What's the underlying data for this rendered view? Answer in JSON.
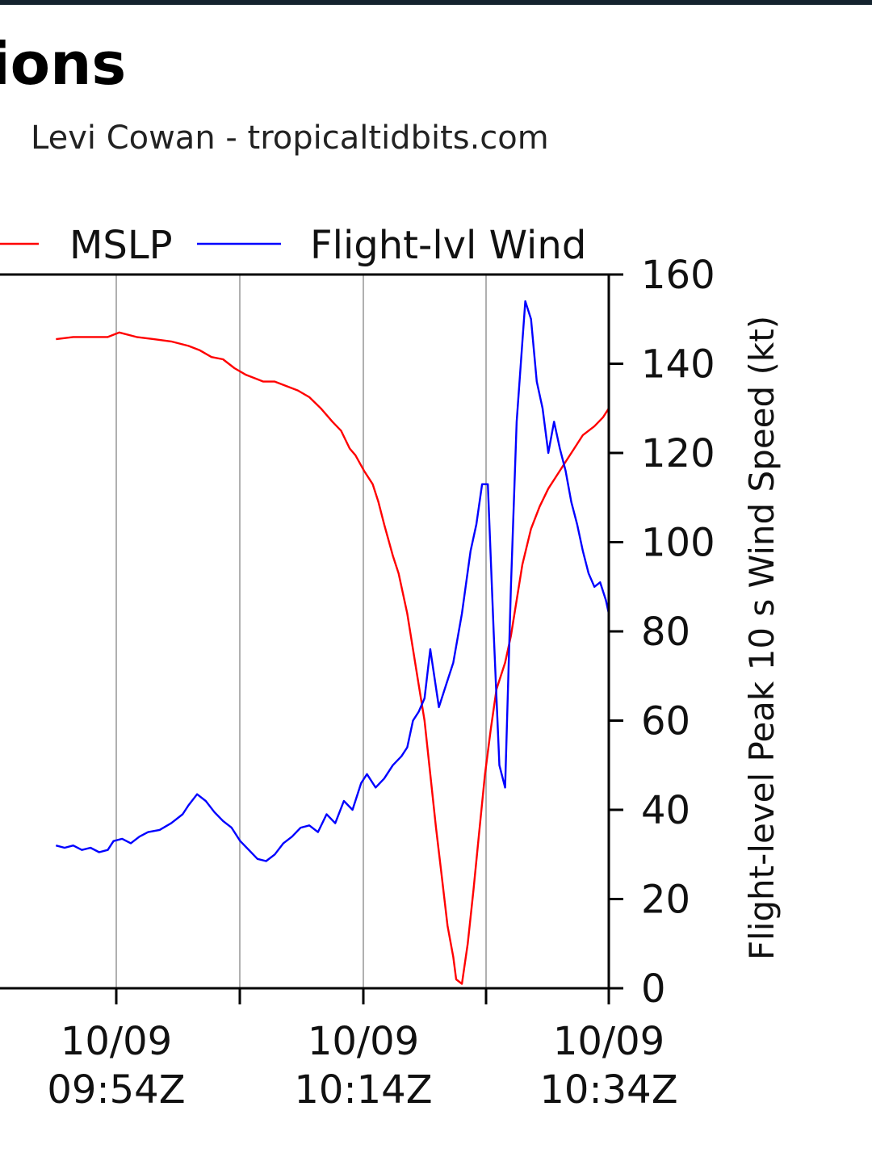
{
  "chart_data": {
    "type": "line",
    "title": "ions",
    "credit": "Levi Cowan - tropicaltidbits.com",
    "ylabel_right": "Flight-level Peak 10 s Wind Speed (kt)",
    "ylim_right": [
      0,
      160
    ],
    "y_ticks": [
      "0",
      "20",
      "40",
      "60",
      "80",
      "100",
      "120",
      "140",
      "160"
    ],
    "x_ticks": [
      {
        "line1": "10/09",
        "line2": "09:54Z"
      },
      {
        "line1": "10/09",
        "line2": "10:14Z"
      },
      {
        "line1": "10/09",
        "line2": "10:34Z"
      }
    ],
    "grid": true,
    "legend_position": "top",
    "series": [
      {
        "name": "MSLP",
        "color": "#ff0000",
        "axis": "left (scale not visible)",
        "points": [
          [
            0,
            145.5
          ],
          [
            3,
            146
          ],
          [
            6,
            146
          ],
          [
            9,
            146
          ],
          [
            11,
            147
          ],
          [
            14,
            146
          ],
          [
            17,
            145.5
          ],
          [
            20,
            145
          ],
          [
            23,
            144
          ],
          [
            25,
            143
          ],
          [
            27,
            141.5
          ],
          [
            29,
            141
          ],
          [
            31,
            139
          ],
          [
            33,
            137.5
          ],
          [
            35,
            136.5
          ],
          [
            36,
            136
          ],
          [
            38,
            136
          ],
          [
            40,
            135
          ],
          [
            42,
            134
          ],
          [
            44,
            132.5
          ],
          [
            46,
            130
          ],
          [
            48,
            127
          ],
          [
            49.5,
            125
          ],
          [
            51,
            121
          ],
          [
            52,
            119.5
          ],
          [
            53.5,
            116
          ],
          [
            55,
            113
          ],
          [
            56,
            109
          ],
          [
            57,
            104
          ],
          [
            58.5,
            97
          ],
          [
            59.5,
            93
          ],
          [
            61,
            84
          ],
          [
            62,
            76
          ],
          [
            63,
            68
          ],
          [
            64,
            60
          ],
          [
            65,
            48
          ],
          [
            66,
            36
          ],
          [
            67,
            25
          ],
          [
            68,
            14
          ],
          [
            69,
            7
          ],
          [
            69.5,
            2
          ],
          [
            70.5,
            1
          ],
          [
            71.5,
            10
          ],
          [
            72.5,
            22
          ],
          [
            73.5,
            35
          ],
          [
            74.5,
            48
          ],
          [
            75.5,
            58
          ],
          [
            76.5,
            67
          ],
          [
            78,
            73
          ],
          [
            79,
            79
          ],
          [
            80,
            87
          ],
          [
            81,
            95
          ],
          [
            82.5,
            103
          ],
          [
            84,
            108
          ],
          [
            85.5,
            112
          ],
          [
            87,
            115
          ],
          [
            88.5,
            118
          ],
          [
            90,
            121
          ],
          [
            91.5,
            124
          ],
          [
            93.5,
            126
          ],
          [
            95,
            128
          ],
          [
            96,
            130
          ]
        ]
      },
      {
        "name": "Flight-lvl Wind",
        "color": "#0000ff",
        "axis": "right",
        "points": [
          [
            0,
            32
          ],
          [
            1.5,
            31.5
          ],
          [
            3,
            32
          ],
          [
            4.5,
            31
          ],
          [
            6,
            31.5
          ],
          [
            7.5,
            30.5
          ],
          [
            9,
            31
          ],
          [
            10,
            33
          ],
          [
            11.5,
            33.5
          ],
          [
            13,
            32.5
          ],
          [
            14.5,
            34
          ],
          [
            16,
            35
          ],
          [
            18,
            35.5
          ],
          [
            20,
            37
          ],
          [
            22,
            39
          ],
          [
            23,
            41
          ],
          [
            24.5,
            43.5
          ],
          [
            26,
            42
          ],
          [
            27.5,
            39.5
          ],
          [
            29,
            37.5
          ],
          [
            30.5,
            36
          ],
          [
            32,
            33
          ],
          [
            33.5,
            31
          ],
          [
            35,
            29
          ],
          [
            36.5,
            28.5
          ],
          [
            38,
            30
          ],
          [
            39.5,
            32.5
          ],
          [
            41,
            34
          ],
          [
            42.5,
            36
          ],
          [
            44,
            36.5
          ],
          [
            45.5,
            35
          ],
          [
            47,
            39
          ],
          [
            48.5,
            37
          ],
          [
            50,
            42
          ],
          [
            51.5,
            40
          ],
          [
            53,
            46
          ],
          [
            54,
            48
          ],
          [
            55.5,
            45
          ],
          [
            57,
            47
          ],
          [
            58.5,
            50
          ],
          [
            60,
            52
          ],
          [
            61,
            54
          ],
          [
            62,
            60
          ],
          [
            63,
            62
          ],
          [
            64,
            65
          ],
          [
            65,
            76
          ],
          [
            66.5,
            63
          ],
          [
            67.5,
            67
          ],
          [
            69,
            73
          ],
          [
            70.5,
            84
          ],
          [
            72,
            98
          ],
          [
            73,
            104
          ],
          [
            74,
            113
          ],
          [
            75,
            113
          ],
          [
            76,
            80
          ],
          [
            77,
            50
          ],
          [
            78,
            45
          ],
          [
            79,
            90
          ],
          [
            80,
            127
          ],
          [
            81,
            145
          ],
          [
            81.5,
            154
          ],
          [
            82.5,
            150
          ],
          [
            83.5,
            136
          ],
          [
            84.5,
            130
          ],
          [
            85.5,
            120
          ],
          [
            86.5,
            127
          ],
          [
            87.5,
            121
          ],
          [
            88.5,
            116
          ],
          [
            89.5,
            109
          ],
          [
            90.5,
            104
          ],
          [
            91.5,
            98
          ],
          [
            92.5,
            93
          ],
          [
            93.5,
            90
          ],
          [
            94.5,
            91
          ],
          [
            95.5,
            87
          ],
          [
            96,
            84
          ]
        ]
      }
    ]
  }
}
